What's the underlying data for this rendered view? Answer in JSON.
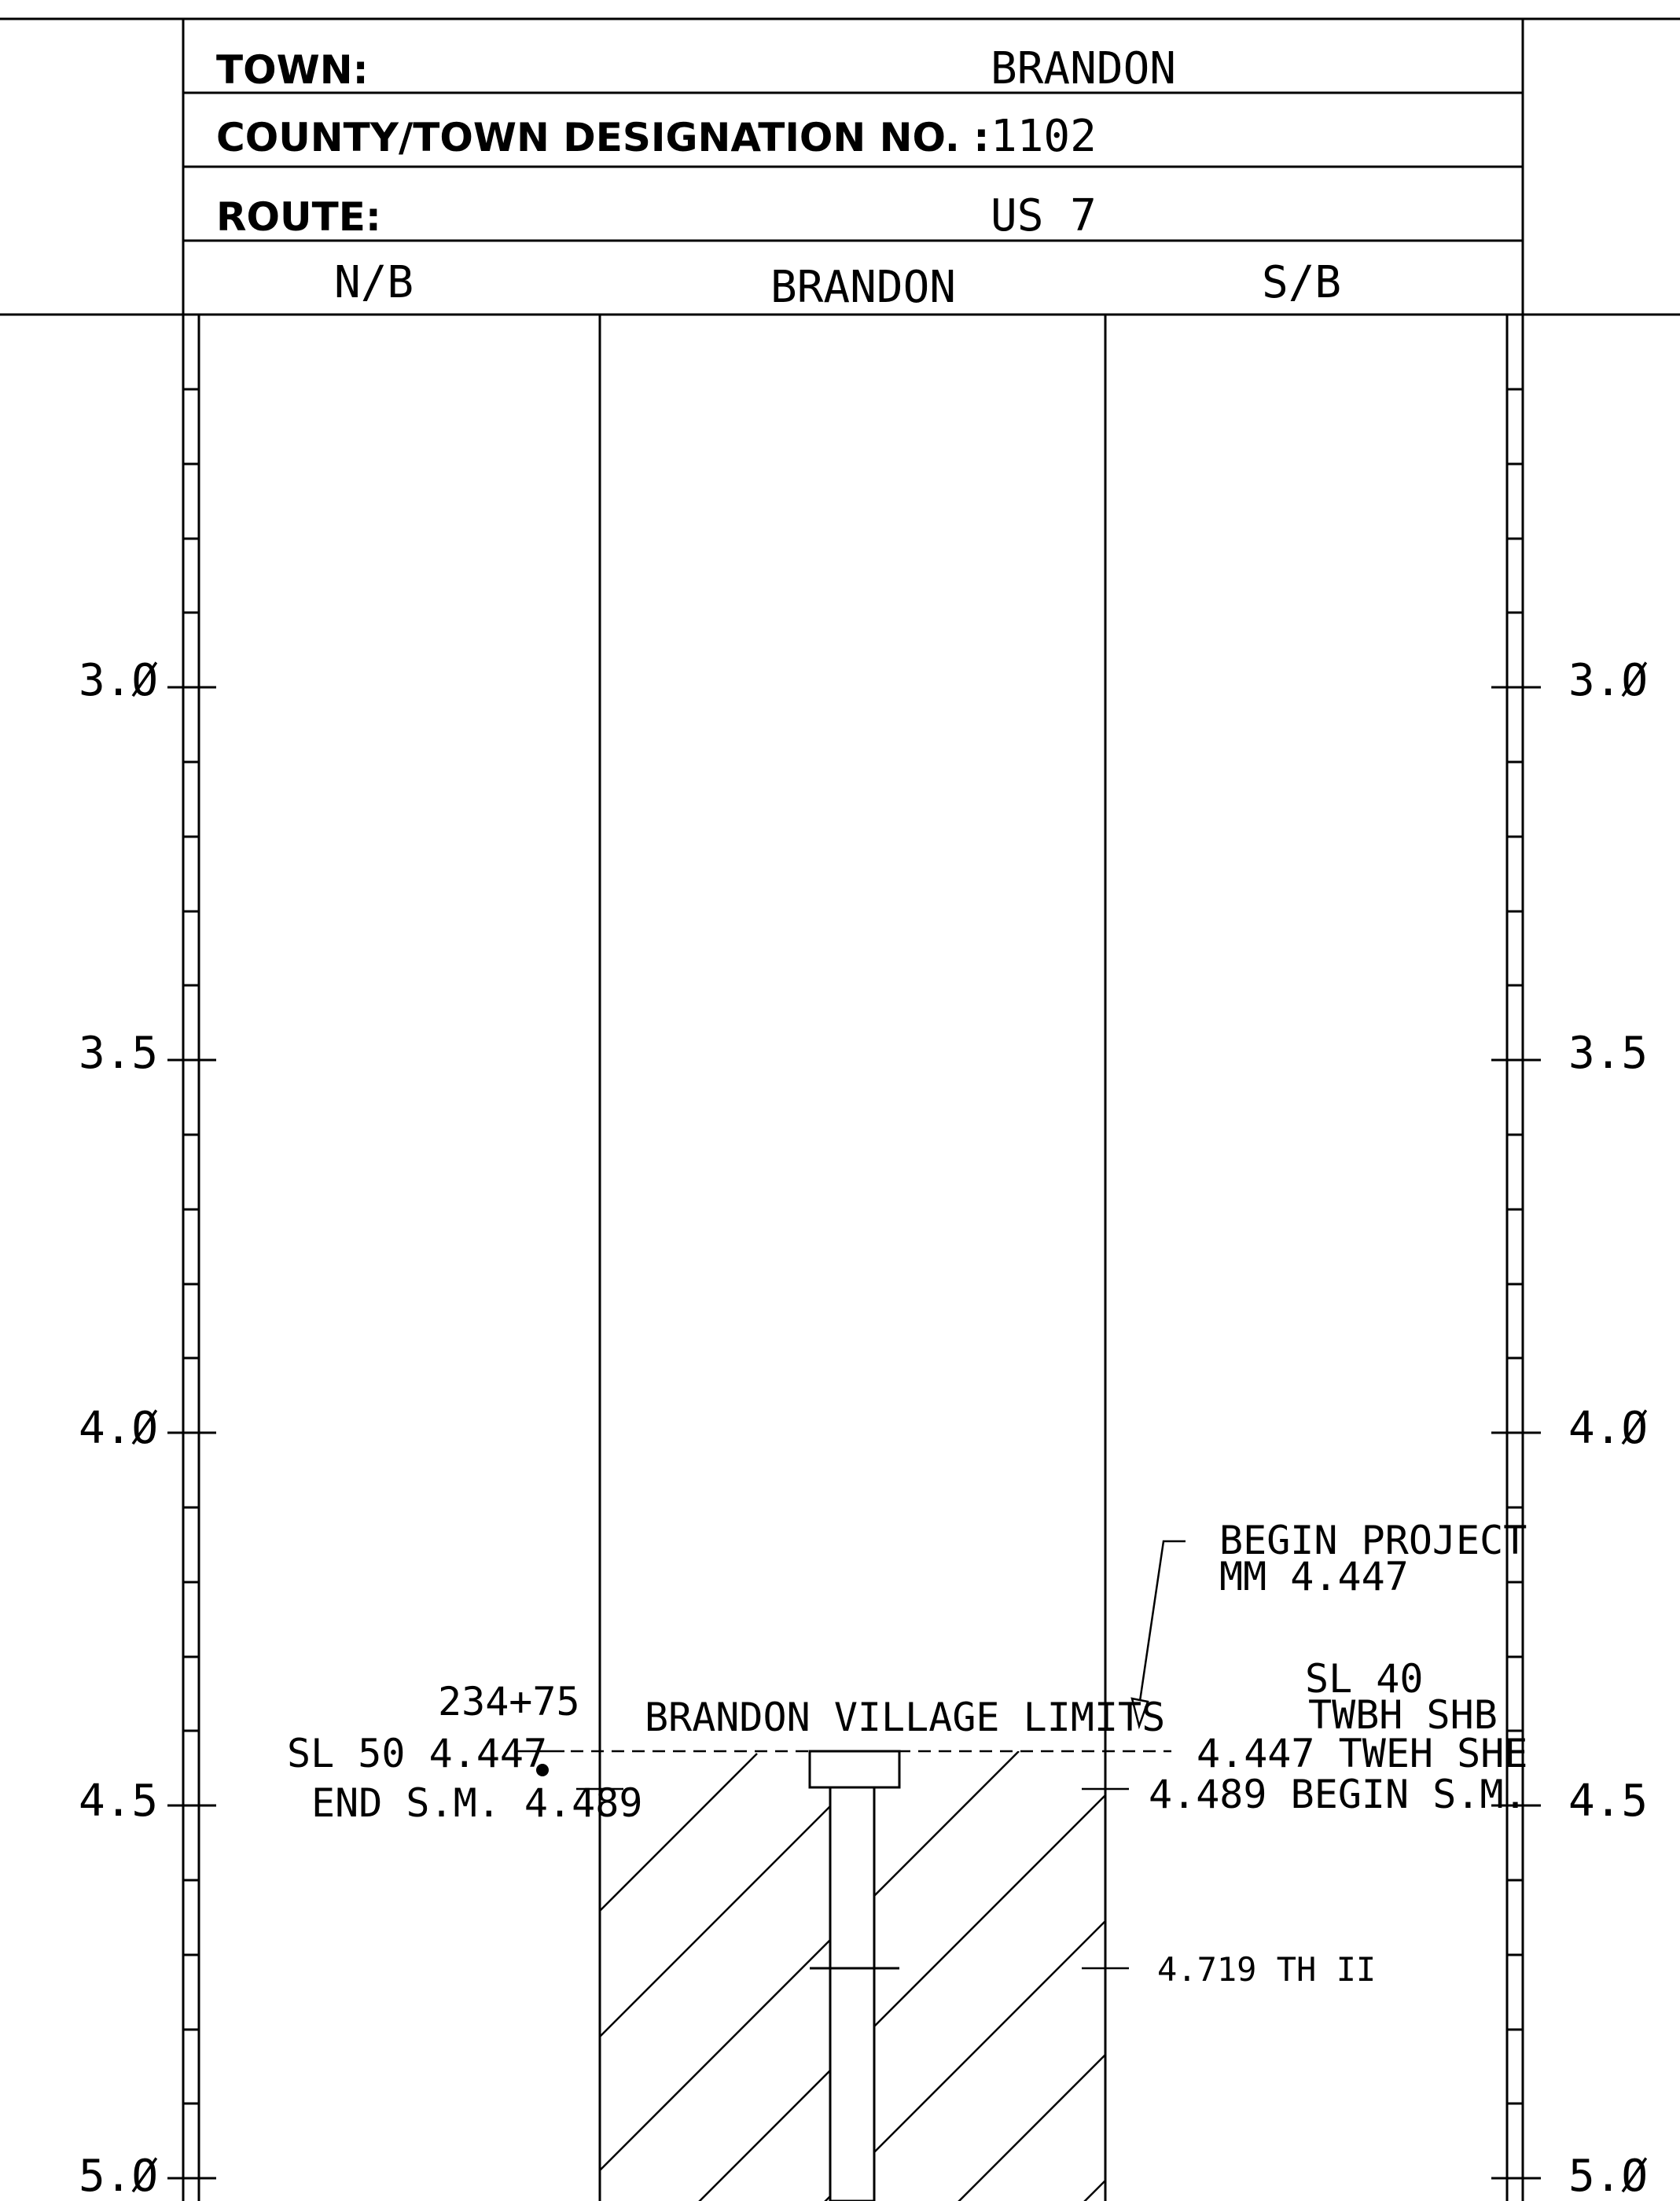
{
  "header": {
    "town_label": "TOWN:",
    "town_value": "BRANDON",
    "designation_label": "COUNTY/TOWN DESIGNATION NO. :",
    "designation_value": "1102",
    "route_label": "ROUTE:",
    "route_value": "US 7"
  },
  "columns": {
    "left": "N/B",
    "center": "BRANDON",
    "right": "S/B"
  },
  "mile_markers": [
    "3.Ø",
    "3.5",
    "4.Ø",
    "4.5",
    "5.Ø"
  ],
  "annotations": {
    "begin_project_line1": "BEGIN PROJECT",
    "begin_project_line2": "MM 4.447",
    "station": "234+75",
    "sl50": "SL 50 4.447",
    "end_sm": "END S.M. 4.489",
    "village_limits": "BRANDON VILLAGE LIMITS",
    "sl40_line1": "SL 40",
    "sl40_line2": "TWBH SHB",
    "sl40_line3": "4.447 TWEH SHE",
    "begin_sm": "4.489 BEGIN S.M.",
    "th": "4.719 TH II"
  }
}
